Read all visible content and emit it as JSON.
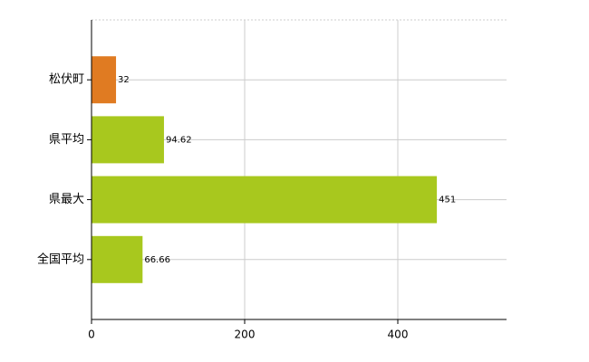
{
  "chart_data": {
    "type": "bar",
    "orientation": "horizontal",
    "categories": [
      "松伏町",
      "県平均",
      "県最大",
      "全国平均"
    ],
    "values": [
      32,
      94.62,
      451,
      66.66
    ],
    "colors": [
      "#e07b22",
      "#a8c81e",
      "#a8c81e",
      "#a8c81e"
    ],
    "xlim": [
      0,
      542
    ],
    "xticks": [
      0,
      200,
      400
    ],
    "grid": true
  }
}
